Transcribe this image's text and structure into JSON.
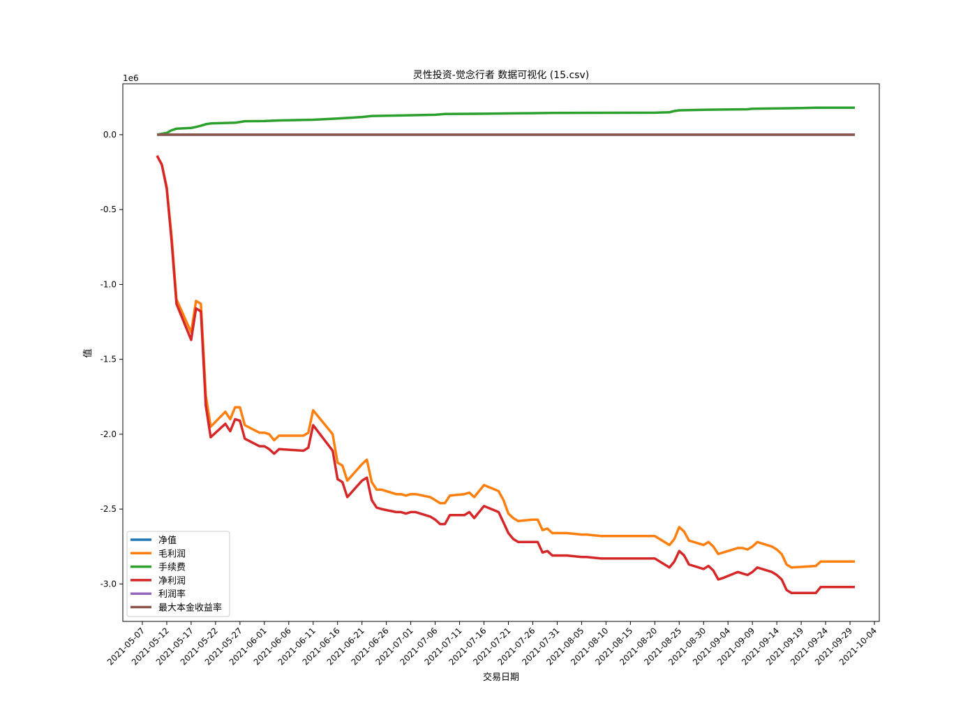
{
  "chart_data": {
    "type": "line",
    "title": "灵性投资-觉念行者 数据可视化 (15.csv)",
    "xlabel": "交易日期",
    "ylabel": "值",
    "y_scale_label": "1e6",
    "y_multiplier": 1000000,
    "ylim": [
      -3.25,
      0.34
    ],
    "xlim": [
      "2021-05-03",
      "2021-10-05"
    ],
    "yticks": [
      0.0,
      -0.5,
      -1.0,
      -1.5,
      -2.0,
      -2.5,
      -3.0
    ],
    "ytick_labels": [
      "0.0",
      "-0.5",
      "-1.0",
      "-1.5",
      "-2.0",
      "-2.5",
      "-3.0"
    ],
    "xticks": [
      "2021-05-07",
      "2021-05-12",
      "2021-05-17",
      "2021-05-22",
      "2021-05-27",
      "2021-06-01",
      "2021-06-06",
      "2021-06-11",
      "2021-06-16",
      "2021-06-21",
      "2021-06-26",
      "2021-07-01",
      "2021-07-06",
      "2021-07-11",
      "2021-07-16",
      "2021-07-21",
      "2021-07-26",
      "2021-07-31",
      "2021-08-05",
      "2021-08-10",
      "2021-08-15",
      "2021-08-20",
      "2021-08-25",
      "2021-08-30",
      "2021-09-04",
      "2021-09-09",
      "2021-09-14",
      "2021-09-19",
      "2021-09-24",
      "2021-09-29",
      "2021-10-04"
    ],
    "grid": false,
    "legend_position": "lower-left",
    "series": [
      {
        "name": "净值",
        "color": "#1f77b4",
        "points": [
          [
            "2021-05-10",
            0
          ],
          [
            "2021-09-30",
            0
          ]
        ]
      },
      {
        "name": "毛利润",
        "color": "#ff7f0e",
        "points": [
          [
            "2021-05-10",
            -0.14
          ],
          [
            "2021-05-11",
            -0.2
          ],
          [
            "2021-05-12",
            -0.35
          ],
          [
            "2021-05-13",
            -0.68
          ],
          [
            "2021-05-14",
            -1.1
          ],
          [
            "2021-05-17",
            -1.32
          ],
          [
            "2021-05-18",
            -1.11
          ],
          [
            "2021-05-19",
            -1.13
          ],
          [
            "2021-05-20",
            -1.74
          ],
          [
            "2021-05-21",
            -1.95
          ],
          [
            "2021-05-24",
            -1.85
          ],
          [
            "2021-05-25",
            -1.9
          ],
          [
            "2021-05-26",
            -1.82
          ],
          [
            "2021-05-27",
            -1.82
          ],
          [
            "2021-05-28",
            -1.94
          ],
          [
            "2021-05-31",
            -1.99
          ],
          [
            "2021-06-01",
            -1.99
          ],
          [
            "2021-06-02",
            -2.0
          ],
          [
            "2021-06-03",
            -2.04
          ],
          [
            "2021-06-04",
            -2.01
          ],
          [
            "2021-06-09",
            -2.01
          ],
          [
            "2021-06-10",
            -1.99
          ],
          [
            "2021-06-11",
            -1.84
          ],
          [
            "2021-06-15",
            -2.0
          ],
          [
            "2021-06-16",
            -2.19
          ],
          [
            "2021-06-17",
            -2.21
          ],
          [
            "2021-06-18",
            -2.31
          ],
          [
            "2021-06-21",
            -2.2
          ],
          [
            "2021-06-22",
            -2.17
          ],
          [
            "2021-06-23",
            -2.32
          ],
          [
            "2021-06-24",
            -2.37
          ],
          [
            "2021-06-25",
            -2.37
          ],
          [
            "2021-06-28",
            -2.4
          ],
          [
            "2021-06-29",
            -2.4
          ],
          [
            "2021-06-30",
            -2.41
          ],
          [
            "2021-07-01",
            -2.4
          ],
          [
            "2021-07-02",
            -2.4
          ],
          [
            "2021-07-05",
            -2.42
          ],
          [
            "2021-07-06",
            -2.44
          ],
          [
            "2021-07-07",
            -2.46
          ],
          [
            "2021-07-08",
            -2.46
          ],
          [
            "2021-07-09",
            -2.41
          ],
          [
            "2021-07-12",
            -2.4
          ],
          [
            "2021-07-13",
            -2.39
          ],
          [
            "2021-07-14",
            -2.42
          ],
          [
            "2021-07-15",
            -2.38
          ],
          [
            "2021-07-16",
            -2.34
          ],
          [
            "2021-07-19",
            -2.38
          ],
          [
            "2021-07-20",
            -2.44
          ],
          [
            "2021-07-21",
            -2.53
          ],
          [
            "2021-07-22",
            -2.56
          ],
          [
            "2021-07-23",
            -2.58
          ],
          [
            "2021-07-26",
            -2.57
          ],
          [
            "2021-07-27",
            -2.57
          ],
          [
            "2021-07-28",
            -2.64
          ],
          [
            "2021-07-29",
            -2.63
          ],
          [
            "2021-07-30",
            -2.66
          ],
          [
            "2021-08-02",
            -2.66
          ],
          [
            "2021-08-05",
            -2.67
          ],
          [
            "2021-08-06",
            -2.67
          ],
          [
            "2021-08-09",
            -2.68
          ],
          [
            "2021-08-20",
            -2.68
          ],
          [
            "2021-08-23",
            -2.74
          ],
          [
            "2021-08-24",
            -2.7
          ],
          [
            "2021-08-25",
            -2.62
          ],
          [
            "2021-08-26",
            -2.65
          ],
          [
            "2021-08-27",
            -2.71
          ],
          [
            "2021-08-30",
            -2.74
          ],
          [
            "2021-08-31",
            -2.72
          ],
          [
            "2021-09-01",
            -2.75
          ],
          [
            "2021-09-02",
            -2.8
          ],
          [
            "2021-09-03",
            -2.79
          ],
          [
            "2021-09-06",
            -2.76
          ],
          [
            "2021-09-07",
            -2.76
          ],
          [
            "2021-09-08",
            -2.77
          ],
          [
            "2021-09-09",
            -2.75
          ],
          [
            "2021-09-10",
            -2.72
          ],
          [
            "2021-09-13",
            -2.75
          ],
          [
            "2021-09-14",
            -2.77
          ],
          [
            "2021-09-15",
            -2.8
          ],
          [
            "2021-09-16",
            -2.87
          ],
          [
            "2021-09-17",
            -2.89
          ],
          [
            "2021-09-22",
            -2.88
          ],
          [
            "2021-09-23",
            -2.85
          ],
          [
            "2021-09-30",
            -2.85
          ]
        ]
      },
      {
        "name": "手续费",
        "color": "#2ca02c",
        "points": [
          [
            "2021-05-10",
            0.0
          ],
          [
            "2021-05-12",
            0.012
          ],
          [
            "2021-05-13",
            0.03
          ],
          [
            "2021-05-14",
            0.04
          ],
          [
            "2021-05-17",
            0.045
          ],
          [
            "2021-05-18",
            0.052
          ],
          [
            "2021-05-19",
            0.06
          ],
          [
            "2021-05-20",
            0.07
          ],
          [
            "2021-05-21",
            0.075
          ],
          [
            "2021-05-26",
            0.08
          ],
          [
            "2021-05-28",
            0.09
          ],
          [
            "2021-06-01",
            0.091
          ],
          [
            "2021-06-04",
            0.095
          ],
          [
            "2021-06-11",
            0.1
          ],
          [
            "2021-06-16",
            0.108
          ],
          [
            "2021-06-21",
            0.118
          ],
          [
            "2021-06-23",
            0.125
          ],
          [
            "2021-06-28",
            0.128
          ],
          [
            "2021-07-06",
            0.133
          ],
          [
            "2021-07-08",
            0.138
          ],
          [
            "2021-07-16",
            0.14
          ],
          [
            "2021-07-23",
            0.143
          ],
          [
            "2021-07-30",
            0.145
          ],
          [
            "2021-08-05",
            0.146
          ],
          [
            "2021-08-20",
            0.147
          ],
          [
            "2021-08-23",
            0.15
          ],
          [
            "2021-08-24",
            0.158
          ],
          [
            "2021-08-25",
            0.163
          ],
          [
            "2021-08-31",
            0.167
          ],
          [
            "2021-09-08",
            0.17
          ],
          [
            "2021-09-09",
            0.173
          ],
          [
            "2021-09-17",
            0.177
          ],
          [
            "2021-09-22",
            0.18
          ],
          [
            "2021-09-30",
            0.18
          ]
        ]
      },
      {
        "name": "净利润",
        "color": "#d62728",
        "points": [
          [
            "2021-05-10",
            -0.14
          ],
          [
            "2021-05-11",
            -0.2
          ],
          [
            "2021-05-12",
            -0.36
          ],
          [
            "2021-05-13",
            -0.71
          ],
          [
            "2021-05-14",
            -1.13
          ],
          [
            "2021-05-17",
            -1.37
          ],
          [
            "2021-05-18",
            -1.16
          ],
          [
            "2021-05-19",
            -1.18
          ],
          [
            "2021-05-20",
            -1.81
          ],
          [
            "2021-05-21",
            -2.02
          ],
          [
            "2021-05-24",
            -1.93
          ],
          [
            "2021-05-25",
            -1.98
          ],
          [
            "2021-05-26",
            -1.9
          ],
          [
            "2021-05-27",
            -1.91
          ],
          [
            "2021-05-28",
            -2.03
          ],
          [
            "2021-05-31",
            -2.08
          ],
          [
            "2021-06-01",
            -2.08
          ],
          [
            "2021-06-02",
            -2.1
          ],
          [
            "2021-06-03",
            -2.13
          ],
          [
            "2021-06-04",
            -2.1
          ],
          [
            "2021-06-09",
            -2.11
          ],
          [
            "2021-06-10",
            -2.09
          ],
          [
            "2021-06-11",
            -1.94
          ],
          [
            "2021-06-15",
            -2.11
          ],
          [
            "2021-06-16",
            -2.3
          ],
          [
            "2021-06-17",
            -2.32
          ],
          [
            "2021-06-18",
            -2.42
          ],
          [
            "2021-06-21",
            -2.31
          ],
          [
            "2021-06-22",
            -2.29
          ],
          [
            "2021-06-23",
            -2.44
          ],
          [
            "2021-06-24",
            -2.49
          ],
          [
            "2021-06-25",
            -2.5
          ],
          [
            "2021-06-28",
            -2.52
          ],
          [
            "2021-06-29",
            -2.52
          ],
          [
            "2021-06-30",
            -2.53
          ],
          [
            "2021-07-01",
            -2.52
          ],
          [
            "2021-07-02",
            -2.52
          ],
          [
            "2021-07-05",
            -2.55
          ],
          [
            "2021-07-06",
            -2.57
          ],
          [
            "2021-07-07",
            -2.6
          ],
          [
            "2021-07-08",
            -2.6
          ],
          [
            "2021-07-09",
            -2.54
          ],
          [
            "2021-07-12",
            -2.54
          ],
          [
            "2021-07-13",
            -2.52
          ],
          [
            "2021-07-14",
            -2.56
          ],
          [
            "2021-07-15",
            -2.52
          ],
          [
            "2021-07-16",
            -2.48
          ],
          [
            "2021-07-19",
            -2.52
          ],
          [
            "2021-07-20",
            -2.59
          ],
          [
            "2021-07-21",
            -2.66
          ],
          [
            "2021-07-22",
            -2.7
          ],
          [
            "2021-07-23",
            -2.72
          ],
          [
            "2021-07-26",
            -2.72
          ],
          [
            "2021-07-27",
            -2.72
          ],
          [
            "2021-07-28",
            -2.79
          ],
          [
            "2021-07-29",
            -2.78
          ],
          [
            "2021-07-30",
            -2.81
          ],
          [
            "2021-08-02",
            -2.81
          ],
          [
            "2021-08-05",
            -2.82
          ],
          [
            "2021-08-06",
            -2.82
          ],
          [
            "2021-08-09",
            -2.83
          ],
          [
            "2021-08-20",
            -2.83
          ],
          [
            "2021-08-23",
            -2.89
          ],
          [
            "2021-08-24",
            -2.85
          ],
          [
            "2021-08-25",
            -2.78
          ],
          [
            "2021-08-26",
            -2.81
          ],
          [
            "2021-08-27",
            -2.87
          ],
          [
            "2021-08-30",
            -2.9
          ],
          [
            "2021-08-31",
            -2.88
          ],
          [
            "2021-09-01",
            -2.91
          ],
          [
            "2021-09-02",
            -2.97
          ],
          [
            "2021-09-03",
            -2.96
          ],
          [
            "2021-09-06",
            -2.92
          ],
          [
            "2021-09-07",
            -2.93
          ],
          [
            "2021-09-08",
            -2.94
          ],
          [
            "2021-09-09",
            -2.92
          ],
          [
            "2021-09-10",
            -2.89
          ],
          [
            "2021-09-13",
            -2.92
          ],
          [
            "2021-09-14",
            -2.94
          ],
          [
            "2021-09-15",
            -2.97
          ],
          [
            "2021-09-16",
            -3.04
          ],
          [
            "2021-09-17",
            -3.06
          ],
          [
            "2021-09-22",
            -3.06
          ],
          [
            "2021-09-23",
            -3.02
          ],
          [
            "2021-09-30",
            -3.02
          ]
        ]
      },
      {
        "name": "利润率",
        "color": "#9467bd",
        "points": [
          [
            "2021-05-10",
            0
          ],
          [
            "2021-09-30",
            0
          ]
        ]
      },
      {
        "name": "最大本金收益率",
        "color": "#8c564b",
        "points": [
          [
            "2021-05-10",
            0
          ],
          [
            "2021-09-30",
            0
          ]
        ]
      }
    ]
  }
}
